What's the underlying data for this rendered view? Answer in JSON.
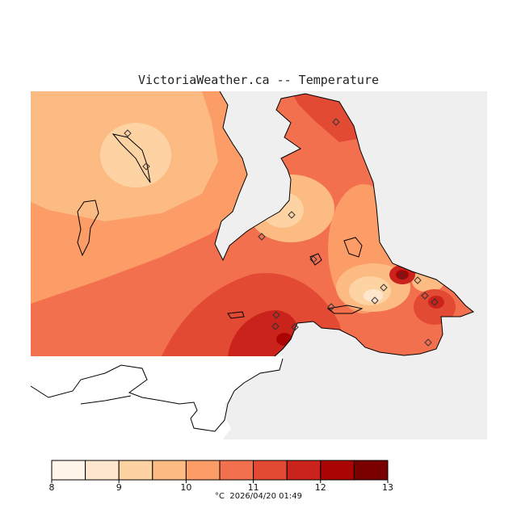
{
  "title": "VictoriaWeather.ca -- Temperature",
  "legend": {
    "unit": "°C",
    "timestamp": "2026/04/20 01:49",
    "ticks": [
      "8",
      "9",
      "10",
      "11",
      "12",
      "13"
    ],
    "bins": [
      {
        "from": 8.0,
        "to": 8.5,
        "color": "#fff5eb"
      },
      {
        "from": 8.5,
        "to": 9.0,
        "color": "#fee6ce"
      },
      {
        "from": 9.0,
        "to": 9.5,
        "color": "#fdd3a4"
      },
      {
        "from": 9.5,
        "to": 10.0,
        "color": "#fdbb84"
      },
      {
        "from": 10.0,
        "to": 10.5,
        "color": "#fc9c66"
      },
      {
        "from": 10.5,
        "to": 11.0,
        "color": "#f3704f"
      },
      {
        "from": 11.0,
        "to": 11.5,
        "color": "#e34a33"
      },
      {
        "from": 11.5,
        "to": 12.0,
        "color": "#c9231c"
      },
      {
        "from": 12.0,
        "to": 12.5,
        "color": "#aa0405"
      },
      {
        "from": 12.5,
        "to": 13.0,
        "color": "#7a0000"
      }
    ]
  },
  "colors": {
    "water": "#efefef",
    "coastline": "#000000",
    "station_marker": "#333333"
  },
  "station_icon": "diamond-station-marker"
}
